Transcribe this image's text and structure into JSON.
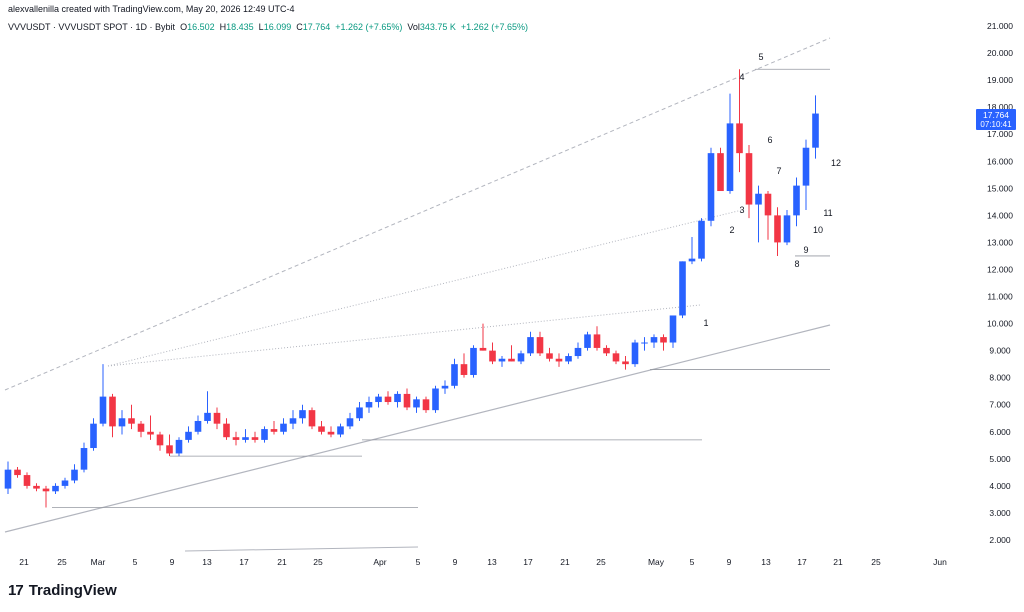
{
  "header": {
    "credit": "alexvallenilla created with TradingView.com, May 20, 2026 12:49 UTC-4"
  },
  "legend": {
    "symbol": "VVVUSDT · VVVUSDT SPOT · 1D · Bybit",
    "o_label": "O",
    "o_value": "16.502",
    "h_label": "H",
    "h_value": "18.435",
    "l_label": "L",
    "l_value": "16.099",
    "c_label": "C",
    "c_value": "17.764",
    "change": "+1.262 (+7.65%)",
    "vol_label": "Vol",
    "vol_value": "343.75 K",
    "vol_change": "+1.262 (+7.65%)"
  },
  "price_badge": {
    "price": "17.764",
    "timer": "07:10:41",
    "color": "#2962ff"
  },
  "brand": {
    "name": "TradingView",
    "mark": "17"
  },
  "colors": {
    "up": "#2962ff",
    "down": "#f23645",
    "grid_text": "#131722",
    "trendline": "#b2b5be"
  },
  "chart_data": {
    "type": "candlestick",
    "ylim": [
      1.5,
      21.5
    ],
    "y_ticks": [
      "21.000",
      "20.000",
      "19.000",
      "18.000",
      "17.000",
      "16.000",
      "15.000",
      "14.000",
      "13.000",
      "12.000",
      "11.000",
      "10.000",
      "9.000",
      "8.000",
      "7.000",
      "6.000",
      "5.000",
      "4.000",
      "3.000",
      "2.000"
    ],
    "x_ticks": [
      "21",
      "25",
      "Mar",
      "5",
      "9",
      "13",
      "17",
      "21",
      "25",
      "Apr",
      "5",
      "9",
      "13",
      "17",
      "21",
      "25",
      "May",
      "5",
      "9",
      "13",
      "17",
      "21",
      "25",
      "Jun"
    ],
    "candles": [
      {
        "o": 3.9,
        "h": 4.9,
        "l": 3.7,
        "c": 4.6
      },
      {
        "o": 4.6,
        "h": 4.7,
        "l": 4.3,
        "c": 4.4
      },
      {
        "o": 4.4,
        "h": 4.5,
        "l": 3.9,
        "c": 4.0
      },
      {
        "o": 4.0,
        "h": 4.1,
        "l": 3.8,
        "c": 3.9
      },
      {
        "o": 3.9,
        "h": 4.0,
        "l": 3.2,
        "c": 3.8
      },
      {
        "o": 3.8,
        "h": 4.1,
        "l": 3.7,
        "c": 4.0
      },
      {
        "o": 4.0,
        "h": 4.3,
        "l": 3.9,
        "c": 4.2
      },
      {
        "o": 4.2,
        "h": 4.8,
        "l": 4.1,
        "c": 4.6
      },
      {
        "o": 4.6,
        "h": 5.6,
        "l": 4.5,
        "c": 5.4
      },
      {
        "o": 5.4,
        "h": 6.5,
        "l": 5.3,
        "c": 6.3
      },
      {
        "o": 6.3,
        "h": 8.5,
        "l": 6.2,
        "c": 7.3
      },
      {
        "o": 7.3,
        "h": 7.4,
        "l": 5.8,
        "c": 6.2
      },
      {
        "o": 6.2,
        "h": 6.8,
        "l": 5.9,
        "c": 6.5
      },
      {
        "o": 6.5,
        "h": 7.0,
        "l": 6.1,
        "c": 6.3
      },
      {
        "o": 6.3,
        "h": 6.4,
        "l": 5.8,
        "c": 6.0
      },
      {
        "o": 6.0,
        "h": 6.6,
        "l": 5.7,
        "c": 5.9
      },
      {
        "o": 5.9,
        "h": 6.0,
        "l": 5.3,
        "c": 5.5
      },
      {
        "o": 5.5,
        "h": 5.9,
        "l": 5.1,
        "c": 5.2
      },
      {
        "o": 5.2,
        "h": 5.8,
        "l": 5.1,
        "c": 5.7
      },
      {
        "o": 5.7,
        "h": 6.2,
        "l": 5.6,
        "c": 6.0
      },
      {
        "o": 6.0,
        "h": 6.6,
        "l": 5.9,
        "c": 6.4
      },
      {
        "o": 6.4,
        "h": 7.5,
        "l": 6.3,
        "c": 6.7
      },
      {
        "o": 6.7,
        "h": 6.9,
        "l": 6.1,
        "c": 6.3
      },
      {
        "o": 6.3,
        "h": 6.5,
        "l": 5.7,
        "c": 5.8
      },
      {
        "o": 5.8,
        "h": 6.0,
        "l": 5.5,
        "c": 5.7
      },
      {
        "o": 5.7,
        "h": 6.1,
        "l": 5.6,
        "c": 5.8
      },
      {
        "o": 5.8,
        "h": 6.0,
        "l": 5.6,
        "c": 5.7
      },
      {
        "o": 5.7,
        "h": 6.2,
        "l": 5.6,
        "c": 6.1
      },
      {
        "o": 6.1,
        "h": 6.4,
        "l": 5.9,
        "c": 6.0
      },
      {
        "o": 6.0,
        "h": 6.5,
        "l": 5.9,
        "c": 6.3
      },
      {
        "o": 6.3,
        "h": 6.8,
        "l": 6.1,
        "c": 6.5
      },
      {
        "o": 6.5,
        "h": 7.0,
        "l": 6.3,
        "c": 6.8
      },
      {
        "o": 6.8,
        "h": 6.9,
        "l": 6.1,
        "c": 6.2
      },
      {
        "o": 6.2,
        "h": 6.4,
        "l": 5.9,
        "c": 6.0
      },
      {
        "o": 6.0,
        "h": 6.2,
        "l": 5.8,
        "c": 5.9
      },
      {
        "o": 5.9,
        "h": 6.3,
        "l": 5.8,
        "c": 6.2
      },
      {
        "o": 6.2,
        "h": 6.7,
        "l": 6.1,
        "c": 6.5
      },
      {
        "o": 6.5,
        "h": 7.1,
        "l": 6.4,
        "c": 6.9
      },
      {
        "o": 6.9,
        "h": 7.3,
        "l": 6.7,
        "c": 7.1
      },
      {
        "o": 7.1,
        "h": 7.4,
        "l": 6.9,
        "c": 7.3
      },
      {
        "o": 7.3,
        "h": 7.5,
        "l": 7.0,
        "c": 7.1
      },
      {
        "o": 7.1,
        "h": 7.5,
        "l": 6.9,
        "c": 7.4
      },
      {
        "o": 7.4,
        "h": 7.6,
        "l": 6.8,
        "c": 6.9
      },
      {
        "o": 6.9,
        "h": 7.3,
        "l": 6.7,
        "c": 7.2
      },
      {
        "o": 7.2,
        "h": 7.3,
        "l": 6.7,
        "c": 6.8
      },
      {
        "o": 6.8,
        "h": 7.7,
        "l": 6.7,
        "c": 7.6
      },
      {
        "o": 7.6,
        "h": 7.9,
        "l": 7.4,
        "c": 7.7
      },
      {
        "o": 7.7,
        "h": 8.7,
        "l": 7.6,
        "c": 8.5
      },
      {
        "o": 8.5,
        "h": 8.9,
        "l": 8.0,
        "c": 8.1
      },
      {
        "o": 8.1,
        "h": 9.2,
        "l": 8.0,
        "c": 9.1
      },
      {
        "o": 9.1,
        "h": 10.0,
        "l": 9.0,
        "c": 9.0
      },
      {
        "o": 9.0,
        "h": 9.3,
        "l": 8.5,
        "c": 8.6
      },
      {
        "o": 8.6,
        "h": 8.8,
        "l": 8.4,
        "c": 8.7
      },
      {
        "o": 8.7,
        "h": 9.2,
        "l": 8.6,
        "c": 8.6
      },
      {
        "o": 8.6,
        "h": 9.0,
        "l": 8.5,
        "c": 8.9
      },
      {
        "o": 8.9,
        "h": 9.7,
        "l": 8.8,
        "c": 9.5
      },
      {
        "o": 9.5,
        "h": 9.7,
        "l": 8.8,
        "c": 8.9
      },
      {
        "o": 8.9,
        "h": 9.1,
        "l": 8.6,
        "c": 8.7
      },
      {
        "o": 8.7,
        "h": 8.9,
        "l": 8.4,
        "c": 8.6
      },
      {
        "o": 8.6,
        "h": 8.9,
        "l": 8.5,
        "c": 8.8
      },
      {
        "o": 8.8,
        "h": 9.3,
        "l": 8.7,
        "c": 9.1
      },
      {
        "o": 9.1,
        "h": 9.7,
        "l": 9.0,
        "c": 9.6
      },
      {
        "o": 9.6,
        "h": 9.9,
        "l": 9.0,
        "c": 9.1
      },
      {
        "o": 9.1,
        "h": 9.2,
        "l": 8.8,
        "c": 8.9
      },
      {
        "o": 8.9,
        "h": 9.0,
        "l": 8.5,
        "c": 8.6
      },
      {
        "o": 8.6,
        "h": 8.8,
        "l": 8.3,
        "c": 8.5
      },
      {
        "o": 8.5,
        "h": 9.4,
        "l": 8.4,
        "c": 9.3
      },
      {
        "o": 9.3,
        "h": 9.5,
        "l": 9.0,
        "c": 9.3
      },
      {
        "o": 9.3,
        "h": 9.6,
        "l": 9.1,
        "c": 9.5
      },
      {
        "o": 9.5,
        "h": 9.6,
        "l": 9.0,
        "c": 9.3
      },
      {
        "o": 9.3,
        "h": 10.3,
        "l": 9.1,
        "c": 10.3
      },
      {
        "o": 10.3,
        "h": 12.3,
        "l": 10.2,
        "c": 12.3
      },
      {
        "o": 12.3,
        "h": 13.2,
        "l": 12.2,
        "c": 12.4
      },
      {
        "o": 12.4,
        "h": 13.9,
        "l": 12.3,
        "c": 13.8
      },
      {
        "o": 13.8,
        "h": 16.5,
        "l": 13.6,
        "c": 16.3
      },
      {
        "o": 16.3,
        "h": 16.5,
        "l": 14.9,
        "c": 14.9
      },
      {
        "o": 14.9,
        "h": 18.5,
        "l": 14.8,
        "c": 17.4
      },
      {
        "o": 17.4,
        "h": 19.4,
        "l": 15.6,
        "c": 16.3
      },
      {
        "o": 16.3,
        "h": 16.6,
        "l": 13.9,
        "c": 14.4
      },
      {
        "o": 14.4,
        "h": 15.1,
        "l": 13.0,
        "c": 14.8
      },
      {
        "o": 14.8,
        "h": 14.9,
        "l": 13.1,
        "c": 14.0
      },
      {
        "o": 14.0,
        "h": 14.3,
        "l": 12.5,
        "c": 13.0
      },
      {
        "o": 13.0,
        "h": 14.2,
        "l": 12.9,
        "c": 14.0
      },
      {
        "o": 14.0,
        "h": 15.4,
        "l": 13.6,
        "c": 15.1
      },
      {
        "o": 15.1,
        "h": 16.8,
        "l": 14.2,
        "c": 16.5
      },
      {
        "o": 16.502,
        "h": 18.435,
        "l": 16.099,
        "c": 17.764
      }
    ],
    "annotations": [
      "1",
      "2",
      "3",
      "4",
      "5",
      "6",
      "7",
      "8",
      "9",
      "10",
      "11",
      "12"
    ],
    "horizontal_levels": [
      3.2,
      5.1,
      5.7,
      8.3,
      12.5,
      19.4
    ]
  }
}
